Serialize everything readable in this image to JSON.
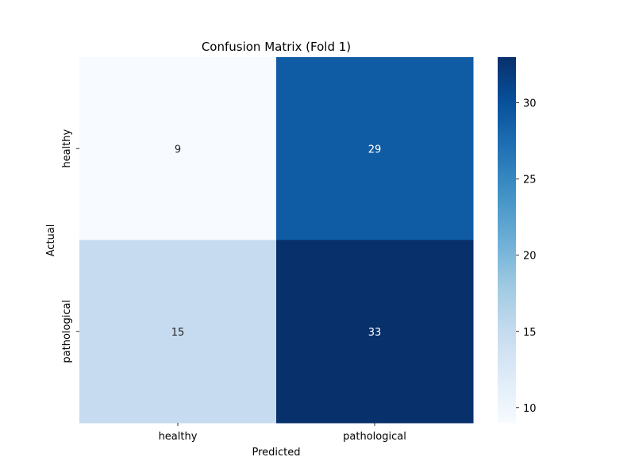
{
  "chart_data": {
    "type": "heatmap",
    "title": "Confusion Matrix (Fold 1)",
    "xlabel": "Predicted",
    "ylabel": "Actual",
    "x_categories": [
      "healthy",
      "pathological"
    ],
    "y_categories": [
      "healthy",
      "pathological"
    ],
    "values": [
      [
        9,
        29
      ],
      [
        15,
        33
      ]
    ],
    "annotations": [
      [
        "9",
        "29"
      ],
      [
        "15",
        "33"
      ]
    ],
    "colorbar": {
      "range": [
        9,
        33
      ],
      "ticks": [
        10,
        15,
        20,
        25,
        30
      ],
      "tick_labels": [
        "10",
        "15",
        "20",
        "25",
        "30"
      ],
      "colormap": "Blues"
    },
    "grid": false,
    "legend": "none"
  }
}
